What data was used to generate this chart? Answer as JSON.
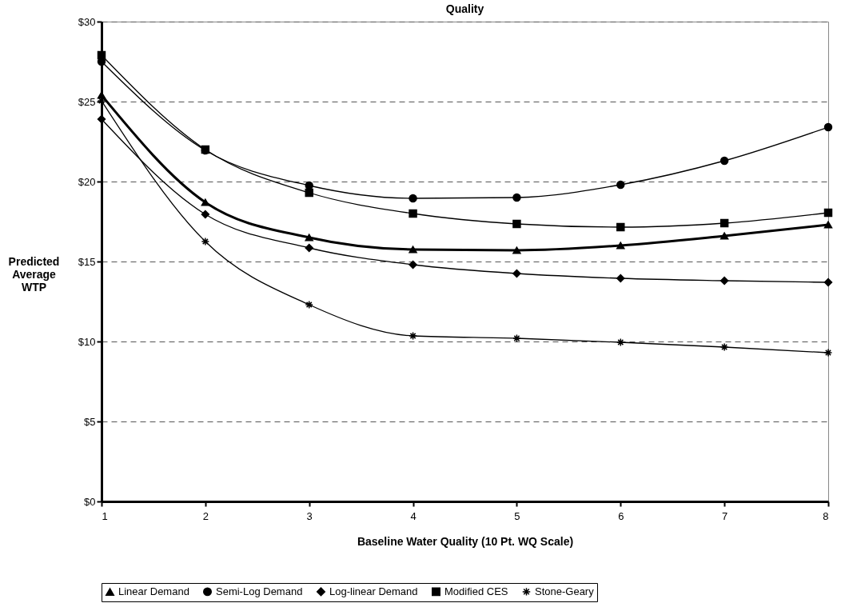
{
  "chart_data": {
    "type": "line",
    "title": "Quality",
    "xlabel": "Baseline Water Quality (10 Pt. WQ Scale)",
    "ylabel": "Predicted Average WTP",
    "x": [
      1,
      2,
      3,
      4,
      5,
      6,
      7,
      8
    ],
    "series": [
      {
        "name": "Linear Demand",
        "color": "#000000",
        "marker": "triangle",
        "values": [
          25.4,
          18.7,
          16.5,
          15.75,
          15.7,
          16.0,
          16.6,
          17.3
        ]
      },
      {
        "name": "Semi-Log Demand",
        "color": "#000000",
        "marker": "circle",
        "values": [
          27.5,
          21.95,
          19.75,
          18.95,
          19.0,
          19.8,
          21.3,
          23.4
        ]
      },
      {
        "name": "Log-linear Demand",
        "color": "#000000",
        "marker": "diamond",
        "values": [
          23.9,
          17.95,
          15.85,
          14.8,
          14.25,
          13.95,
          13.8,
          13.7
        ]
      },
      {
        "name": "Modified CES",
        "color": "#000000",
        "marker": "square",
        "values": [
          27.9,
          22.0,
          19.3,
          18.0,
          17.35,
          17.15,
          17.4,
          18.05
        ]
      },
      {
        "name": "Stone-Geary",
        "color": "#000000",
        "marker": "cross",
        "values": [
          25.05,
          16.25,
          12.3,
          10.35,
          10.2,
          9.95,
          9.65,
          9.3
        ]
      }
    ],
    "xlim": [
      1,
      8
    ],
    "xticks": [
      1,
      2,
      3,
      4,
      5,
      6,
      7,
      8
    ],
    "ylim": [
      0,
      30
    ],
    "yticks": [
      {
        "value": 0,
        "label": "$0"
      },
      {
        "value": 5,
        "label": "$5"
      },
      {
        "value": 10,
        "label": "$10"
      },
      {
        "value": 15,
        "label": "$15"
      },
      {
        "value": 20,
        "label": "$20"
      },
      {
        "value": 25,
        "label": "$25"
      },
      {
        "value": 30,
        "label": "$30"
      }
    ],
    "grid": "y",
    "legend": "bottom",
    "line_style": "solid"
  }
}
